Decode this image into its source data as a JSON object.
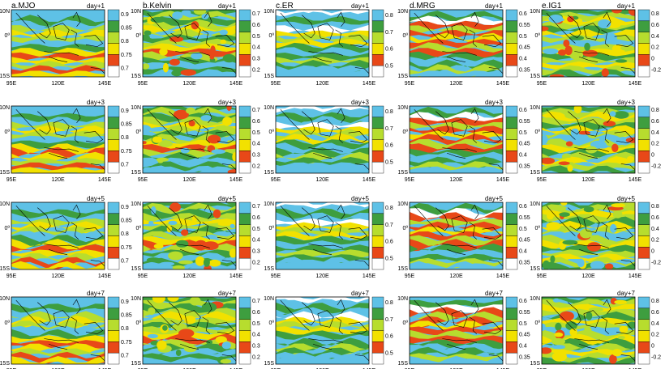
{
  "figure": {
    "panels": [
      {
        "id": "a",
        "title": "a.MJO",
        "colorbar_ticks": [
          "0.9",
          "0.85",
          "0.8",
          "0.75",
          "0.7"
        ],
        "colors": [
          "#ffffff",
          "#e84818",
          "#f2e100",
          "#b7dd2e",
          "#3e9e3f",
          "#5ec1e6"
        ],
        "palette": "standard"
      },
      {
        "id": "b",
        "title": "b.Kelvin",
        "colorbar_ticks": [
          "0.7",
          "0.6",
          "0.5",
          "0.4",
          "0.3",
          "0.2"
        ],
        "colors": [
          "#ffffff",
          "#e84818",
          "#f2e100",
          "#b7dd2e",
          "#3e9e3f",
          "#5ec1e6"
        ],
        "palette": "standard"
      },
      {
        "id": "c",
        "title": "c.ER",
        "colorbar_ticks": [
          "0.8",
          "0.7",
          "0.6",
          "0.5"
        ],
        "colors": [
          "#ffffff",
          "#e84818",
          "#f2e100",
          "#b7dd2e",
          "#3e9e3f",
          "#5ec1e6"
        ],
        "palette": "standard"
      },
      {
        "id": "d",
        "title": "d.MRG",
        "colorbar_ticks": [
          "0.6",
          "0.55",
          "0.5",
          "0.45",
          "0.4",
          "0.35"
        ],
        "colors": [
          "#ffffff",
          "#e84818",
          "#f2e100",
          "#b7dd2e",
          "#3e9e3f",
          "#5ec1e6"
        ],
        "palette": "red-heavy"
      },
      {
        "id": "e",
        "title": "e.IG1",
        "colorbar_ticks": [
          "0.8",
          "0.6",
          "0.4",
          "0.2",
          "0",
          "-0.2"
        ],
        "colors": [
          "#ffffff",
          "#e84818",
          "#f2e100",
          "#b7dd2e",
          "#3e9e3f",
          "#5ec1e6"
        ],
        "palette": "patchy"
      }
    ],
    "rows": [
      {
        "day_label": "day+1"
      },
      {
        "day_label": "day+3"
      },
      {
        "day_label": "day+5"
      },
      {
        "day_label": "day+7"
      }
    ],
    "lat_ticks": [
      "10N",
      "0º",
      "15S"
    ],
    "lon_ticks": [
      "95E",
      "120E",
      "145E"
    ]
  }
}
